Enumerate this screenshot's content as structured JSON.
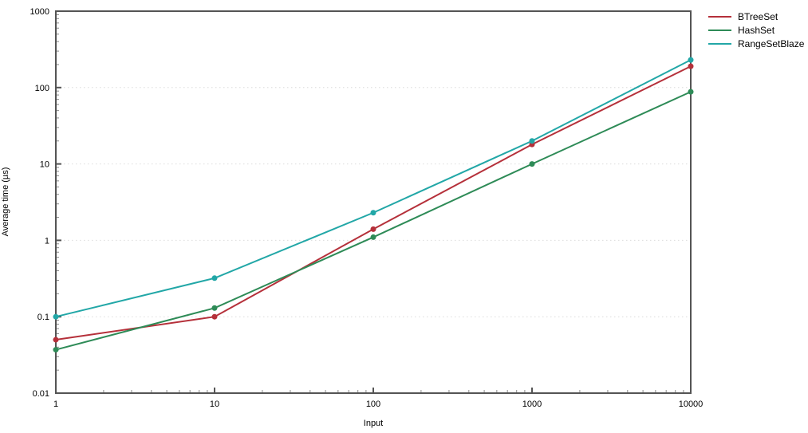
{
  "chart_data": {
    "type": "line",
    "title": "",
    "xlabel": "Input",
    "ylabel": "Average time (µs)",
    "x_scale": "log",
    "y_scale": "log",
    "xlim": [
      1,
      10000
    ],
    "ylim": [
      0.01,
      1000
    ],
    "x_ticks": [
      1,
      10,
      100,
      1000,
      10000
    ],
    "x_tick_labels": [
      "1",
      "10",
      "100",
      "1000",
      "10000"
    ],
    "y_ticks": [
      0.01,
      0.1,
      1,
      10,
      100,
      1000
    ],
    "y_tick_labels": [
      "0.01",
      "0.1",
      "1",
      "10",
      "100",
      "1000"
    ],
    "grid": "horizontal dotted lines at decade values",
    "legend_position": "outside top-right",
    "x": [
      1,
      10,
      100,
      1000,
      10000
    ],
    "series": [
      {
        "name": "BTreeSet",
        "color": "#b5303a",
        "values": [
          0.05,
          0.1,
          1.4,
          18,
          190
        ]
      },
      {
        "name": "HashSet",
        "color": "#2e8b57",
        "values": [
          0.037,
          0.13,
          1.1,
          10,
          88
        ]
      },
      {
        "name": "RangeSetBlaze",
        "color": "#22a7a7",
        "values": [
          0.1,
          0.32,
          2.3,
          20,
          230
        ]
      }
    ],
    "marker": "circle",
    "colors": {
      "spine": "#545454",
      "major_tick": "#545454",
      "minor_tick": "#8a8a8a",
      "gridline": "#dcdcdc",
      "text": "#000000",
      "background": "#ffffff"
    }
  }
}
